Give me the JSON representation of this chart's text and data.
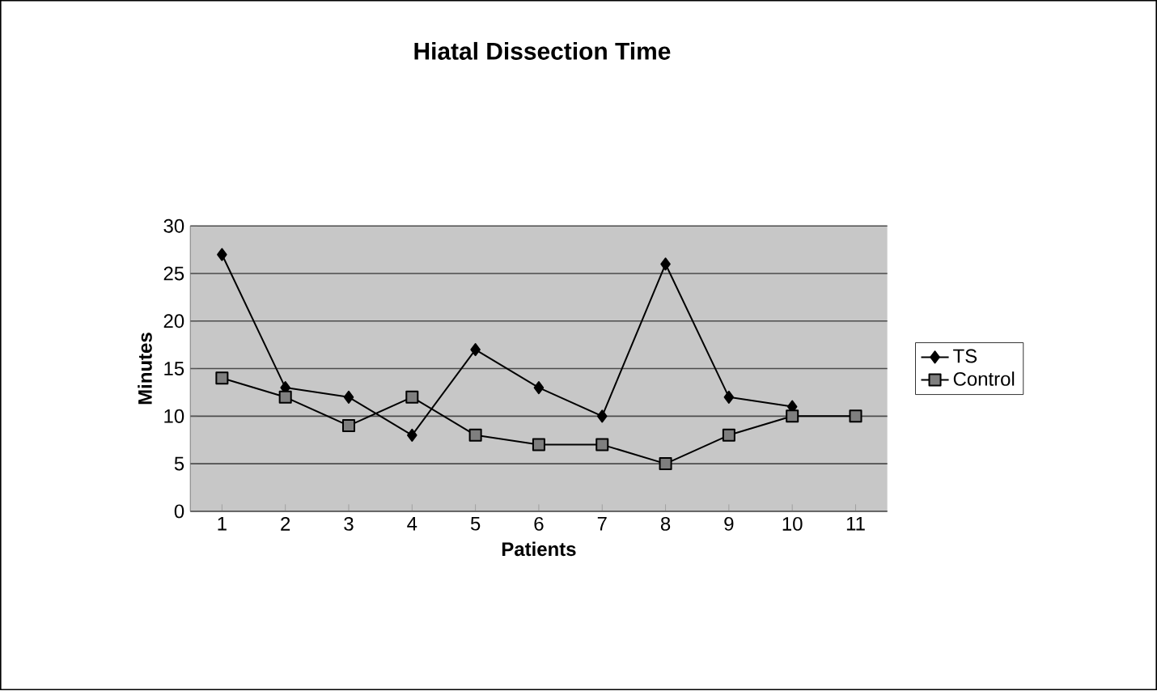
{
  "chart_data": {
    "type": "line",
    "title": "Hiatal Dissection Time",
    "xlabel": "Patients",
    "ylabel": "Minutes",
    "categories": [
      "1",
      "2",
      "3",
      "4",
      "5",
      "6",
      "7",
      "8",
      "9",
      "10",
      "11"
    ],
    "series": [
      {
        "name": "TS",
        "color": "#000000",
        "marker": "diamond",
        "values": [
          27,
          13,
          12,
          8,
          17,
          13,
          10,
          26,
          12,
          11,
          null
        ]
      },
      {
        "name": "Control",
        "color": "#7f7f7f",
        "marker": "square",
        "values": [
          14,
          12,
          9,
          12,
          8,
          7,
          7,
          5,
          8,
          10,
          10
        ]
      }
    ],
    "ylim": [
      0,
      30
    ],
    "yticks": [
      0,
      5,
      10,
      15,
      20,
      25,
      30
    ],
    "grid": "y",
    "legend": "right",
    "line_style": "solid"
  }
}
